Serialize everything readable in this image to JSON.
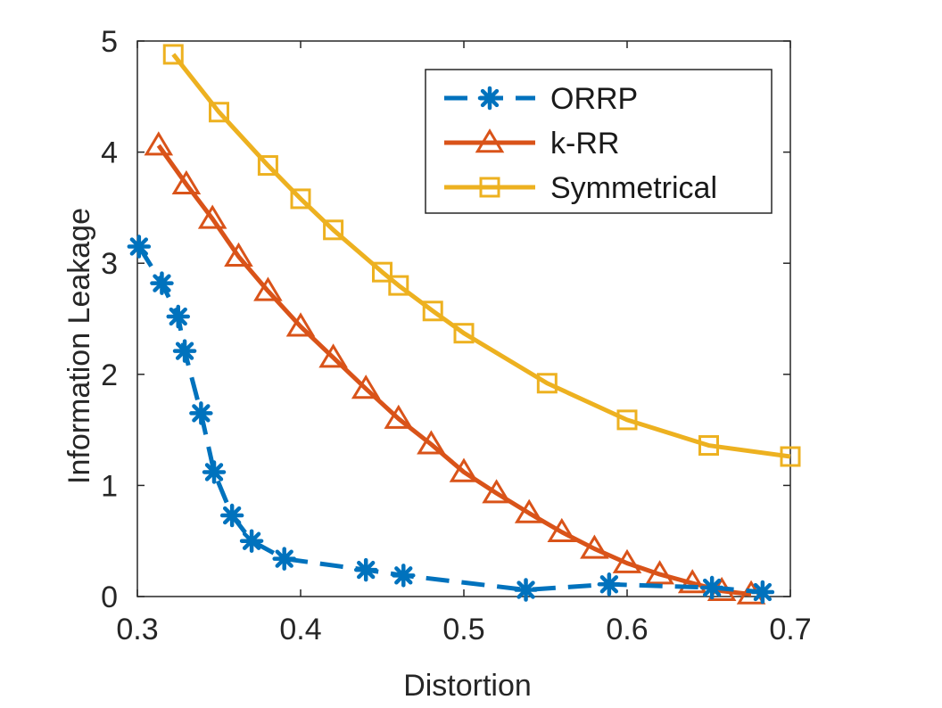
{
  "chart_data": {
    "type": "line",
    "title": "",
    "xlabel": "Distortion",
    "ylabel": "Information Leakage",
    "xlim": [
      0.3,
      0.7
    ],
    "ylim": [
      0,
      5
    ],
    "xticks": [
      0.3,
      0.4,
      0.5,
      0.6,
      0.7
    ],
    "xtick_labels": [
      "0.3",
      "0.4",
      "0.5",
      "0.6",
      "0.7"
    ],
    "yticks": [
      0,
      1,
      2,
      3,
      4,
      5
    ],
    "ytick_labels": [
      "0",
      "1",
      "2",
      "3",
      "4",
      "5"
    ],
    "grid": false,
    "legend_position": "top-right",
    "series": [
      {
        "name": "ORRP",
        "color": "#0072BD",
        "line_style": "dashed",
        "marker": "asterisk",
        "x": [
          0.301,
          0.315,
          0.325,
          0.329,
          0.339,
          0.347,
          0.358,
          0.37,
          0.39,
          0.44,
          0.463,
          0.538,
          0.589,
          0.652,
          0.683
        ],
        "y": [
          3.15,
          2.82,
          2.52,
          2.21,
          1.65,
          1.12,
          0.73,
          0.5,
          0.34,
          0.24,
          0.19,
          0.06,
          0.11,
          0.08,
          0.04
        ]
      },
      {
        "name": "k-RR",
        "color": "#D95319",
        "line_style": "solid",
        "marker": "triangle",
        "x": [
          0.313,
          0.33,
          0.346,
          0.362,
          0.38,
          0.4,
          0.42,
          0.44,
          0.46,
          0.48,
          0.5,
          0.52,
          0.54,
          0.56,
          0.58,
          0.6,
          0.62,
          0.64,
          0.658,
          0.676
        ],
        "y": [
          4.06,
          3.71,
          3.4,
          3.06,
          2.75,
          2.43,
          2.15,
          1.87,
          1.6,
          1.37,
          1.12,
          0.93,
          0.75,
          0.58,
          0.43,
          0.3,
          0.2,
          0.12,
          0.05,
          0.02
        ]
      },
      {
        "name": "Symmetrical",
        "color": "#EDB120",
        "line_style": "solid",
        "marker": "square",
        "x": [
          0.322,
          0.35,
          0.38,
          0.4,
          0.42,
          0.45,
          0.46,
          0.481,
          0.5,
          0.551,
          0.6,
          0.65,
          0.7
        ],
        "y": [
          4.88,
          4.36,
          3.88,
          3.58,
          3.3,
          2.92,
          2.8,
          2.57,
          2.37,
          1.92,
          1.59,
          1.36,
          1.26
        ]
      }
    ]
  }
}
